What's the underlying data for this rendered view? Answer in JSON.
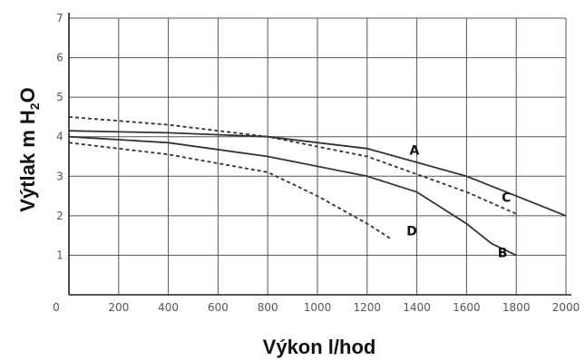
{
  "chart_data": {
    "type": "line",
    "xlabel": "Výkon l/hod",
    "ylabel": "Výtlak m H",
    "ylabel_sub": "2",
    "ylabel_tail": "O",
    "xlim": [
      0,
      2000
    ],
    "ylim": [
      0,
      7
    ],
    "x_ticks": [
      "0",
      "200",
      "400",
      "600",
      "800",
      "1000",
      "1200",
      "1400",
      "1600",
      "1800",
      "2000"
    ],
    "y_ticks": [
      "0",
      "1",
      "2",
      "3",
      "4",
      "5",
      "6",
      "7"
    ],
    "grid": true,
    "series": [
      {
        "name": "A",
        "style": "solid",
        "x": [
          0,
          400,
          800,
          1200,
          1400,
          1600,
          1800,
          2000
        ],
        "y": [
          4.15,
          4.1,
          4.0,
          3.7,
          3.35,
          3.0,
          2.5,
          2.0
        ]
      },
      {
        "name": "B",
        "style": "solid",
        "x": [
          0,
          400,
          800,
          1200,
          1400,
          1600,
          1700,
          1800
        ],
        "y": [
          4.0,
          3.85,
          3.5,
          3.0,
          2.6,
          1.8,
          1.3,
          1.0
        ]
      },
      {
        "name": "C",
        "style": "dashed",
        "x": [
          0,
          400,
          800,
          1200,
          1400,
          1600,
          1800
        ],
        "y": [
          4.5,
          4.3,
          4.0,
          3.5,
          3.05,
          2.6,
          2.05
        ]
      },
      {
        "name": "D",
        "style": "dashed",
        "x": [
          0,
          400,
          800,
          1000,
          1200,
          1300
        ],
        "y": [
          3.85,
          3.55,
          3.1,
          2.5,
          1.8,
          1.4
        ]
      }
    ]
  }
}
